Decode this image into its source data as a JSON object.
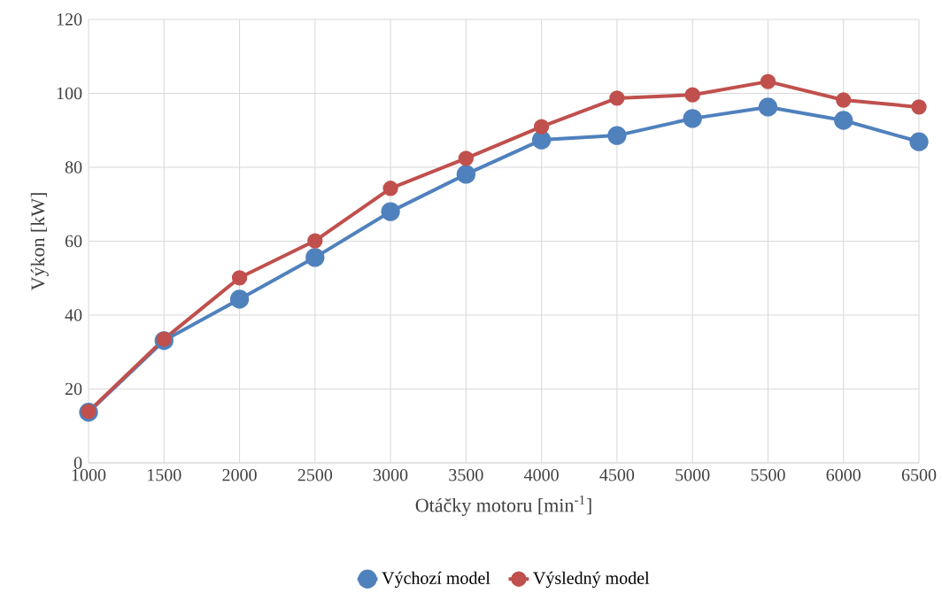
{
  "chart_data": {
    "type": "line",
    "xlabel": "Otáčky motoru [min$^{-1}$]",
    "ylabel": "Výkon [kW]",
    "x": [
      1000,
      1500,
      2000,
      2500,
      3000,
      3500,
      4000,
      4500,
      5000,
      5500,
      6000,
      6500
    ],
    "series": [
      {
        "name": "Výchozí model",
        "color": "#4f81bd",
        "values": [
          13.7,
          33.1,
          44.3,
          55.6,
          68.0,
          78.1,
          87.4,
          88.6,
          93.2,
          96.3,
          92.7,
          86.9
        ]
      },
      {
        "name": "Výsledný model",
        "color": "#c0504d",
        "values": [
          13.9,
          33.5,
          50.1,
          60.1,
          74.3,
          82.4,
          91.0,
          98.7,
          99.6,
          103.2,
          98.2,
          96.3
        ]
      }
    ],
    "xlim": [
      1000,
      6500
    ],
    "ylim": [
      0,
      120
    ],
    "xticks": [
      1000,
      1500,
      2000,
      2500,
      3000,
      3500,
      4000,
      4500,
      5000,
      5500,
      6000,
      6500
    ],
    "yticks": [
      0,
      20,
      40,
      60,
      80,
      100,
      120
    ],
    "grid": true,
    "legend": "bottom",
    "marker": "circle",
    "line_style": "solid"
  }
}
